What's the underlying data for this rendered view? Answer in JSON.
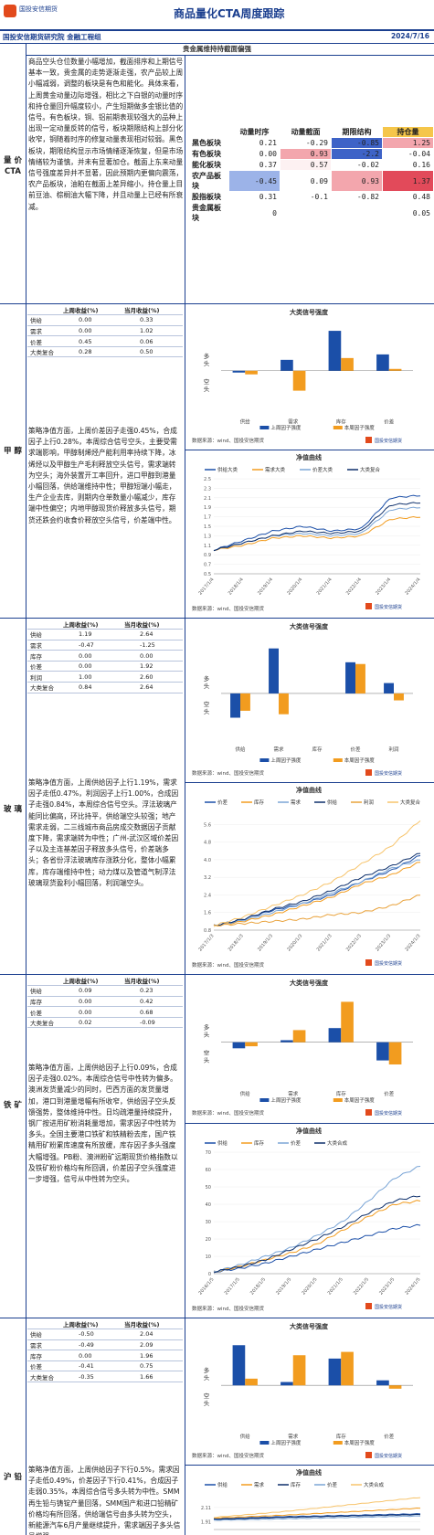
{
  "header": {
    "logo_text": "国投安信期货",
    "title": "商品量化CTA周度跟踪",
    "department": "国投安信期货研究院 金融工程组",
    "date": "2024/7/16"
  },
  "sections": [
    {
      "label": "量\n价\nCTA",
      "title": "贵金属维持持截面偏强",
      "paragraph": "商品空头仓位数量小幅增加，截面排序和上期信号基本一致，贵金属的走势逐渐走强，农产品较上周小幅减弱，调整的板块是有色和能化。具体来看，上周黄金动量边际增强，相比之下白银的动量时序和持仓量回升幅度较小，产生短期做多金银比值的信号。有色板块，铜、铝前期表现较强大的品种上出现一定动量反转的信号，板块期限结构上部分化收窄，铜随着时序的修复动量表现相对较弱。黑色板块，期限结构显示市场情绪逐渐恢复，但是市场情绪较为谨慎，并未有显著加仓。截面上东来动量信号强度差异并不显著，因此预期内更偏向震荡，农产品板块，油粕在截面上差异缩小，持仓量上目前豆油、棕榈油大幅下降，并且动量上已经有所衰减。"
    },
    {
      "label": "甲\n醇",
      "paragraph": "策略净值方面，上周价差因子走强0.45%，合成因子上行0.28%，本周综合信号空头，主要受需求端影响，甲醇制烯烃产能利用率持续下降，冰烯烃以及甲醇生产毛利释放空头信号，需求端转为空头；海外装置开工率回升，进口甲醇到港量小幅回落，供给端维持中性；甲醇短端小幅走，生产企业去库，则期内仓单数量小幅减少，库存端中性偏空；内地甲醇现货价释放多头信号，期货还跌会约收食价释放空头信号，价差端中性。"
    },
    {
      "label": "玻\n璃",
      "paragraph": "策略净值方面，上周供给因子上行1.19%，需求因子走低0.47%，利润因子上行1.00%，合成因子走强0.84%，本周综合信号空头。浮法玻璃产能同比偏高，环比持平，供给端空头较强；地产需求走弱，二三线城市商品房成交数据因子贡献度下降，需求端转为中性；广州-武汉区域价差因子以及主连基差因子释放多头信号，价差端多头；各省份浮法玻璃库存涨跌分化，整体小幅累库，库存端维持中性；动力煤以及管道气制浮法玻璃现货盈利小幅回落，利润端空头。"
    },
    {
      "label": "铁\n矿",
      "paragraph": "策略净值方面，上周供给因子上行0.09%，合成因子走强0.02%，本周综合信号中性转为偏多。澳洲发货量减少的同时，巴西方面的发货量增加，港口到港量增幅有所收窄，供给因子空头反馈强势，整体维持中性。日均疏港量持续提升，钢厂按进用矿粉消耗量增加，需求因子中性转为多头。全国主要港口铁矿和铁精粉去库，国产铁精用矿粉累库速度有所放缓，库存因子多头强度大幅增强。PB粉、澳洲粉矿远期现货价格指数以及铁矿粉价格均有所回调，价差因子空头强度进一步增强，信号从中性转为空头。"
    },
    {
      "label": "沪\n铅",
      "paragraph": "策略净值方面，上周供给因子下行0.5%，需求因子走低0.49%，价差因子下行0.41%，合成因子走弱0.35%，本周综合信号多头转为中性。SMM再生铅与铸锭产量回落，SMM国产和进口铅精矿价格均有所回落，供给端信号由多头转为空头，新能源汽车6月产量继续提升，需求端因子多头信号增强，"
    }
  ],
  "heatmap": {
    "columns": [
      "动量时序",
      "动量截面",
      "期限结构",
      "持仓量"
    ],
    "rows": [
      {
        "name": "黑色板块",
        "values": [
          "0.21",
          "-0.29",
          "-0.85",
          "1.25"
        ],
        "colors": [
          "#fff",
          "#fff",
          "#3e63c7",
          "#f3a6ad"
        ]
      },
      {
        "name": "有色板块",
        "values": [
          "0.00",
          "0.93",
          "-2.2",
          "-0.04"
        ],
        "colors": [
          "#fff",
          "#f3a6ad",
          "#3e63c7",
          "#fff"
        ]
      },
      {
        "name": "能化板块",
        "values": [
          "0.37",
          "0.57",
          "-0.02",
          "0.16"
        ],
        "colors": [
          "#fff",
          "#fdf1f2",
          "#fff",
          "#fff"
        ]
      },
      {
        "name": "农产品板块",
        "values": [
          "-0.45",
          "0.09",
          "0.93",
          "1.37"
        ],
        "colors": [
          "#9cb3e8",
          "#fff",
          "#f3a6ad",
          "#e24a5a"
        ]
      },
      {
        "name": "股指板块",
        "values": [
          "0.31",
          "-0.1",
          "-0.82",
          "0.48"
        ],
        "colors": [
          "#fff",
          "#fff",
          "#fff",
          "#fff"
        ]
      },
      {
        "name": "贵金属板块",
        "values": [
          "0",
          "",
          "",
          "0.05"
        ],
        "colors": [
          "#fff",
          "#fff",
          "#fff",
          "#fff"
        ]
      }
    ]
  },
  "signal_tables": [
    {
      "headers": [
        "",
        "上周收益(%)",
        "当月收益(%)"
      ],
      "rows": [
        [
          "供给",
          "0.00",
          "0.33"
        ],
        [
          "需求",
          "0.00",
          "1.02"
        ],
        [
          "价差",
          "0.45",
          "0.06"
        ],
        [
          "大类复合",
          "0.28",
          "0.50"
        ]
      ]
    },
    {
      "headers": [
        "",
        "上周收益(%)",
        "当月收益(%)"
      ],
      "rows": [
        [
          "供给",
          "1.19",
          "2.64"
        ],
        [
          "需求",
          "-0.47",
          "-1.25"
        ],
        [
          "库存",
          "0.00",
          "0.00"
        ],
        [
          "价差",
          "0.00",
          "1.92"
        ],
        [
          "利润",
          "1.00",
          "2.60"
        ],
        [
          "大类复合",
          "0.84",
          "2.64"
        ]
      ]
    },
    {
      "headers": [
        "",
        "上周收益(%)",
        "当月收益(%)"
      ],
      "rows": [
        [
          "供给",
          "0.09",
          "0.23"
        ],
        [
          "库存",
          "0.00",
          "0.42"
        ],
        [
          "价差",
          "0.00",
          "0.68"
        ],
        [
          "大类复合",
          "0.02",
          "-0.09"
        ]
      ]
    },
    {
      "headers": [
        "",
        "上周收益(%)",
        "当月收益(%)"
      ],
      "rows": [
        [
          "供给",
          "-0.50",
          "2.04"
        ],
        [
          "需求",
          "-0.49",
          "2.09"
        ],
        [
          "库存",
          "0.00",
          "1.96"
        ],
        [
          "价差",
          "-0.41",
          "0.75"
        ],
        [
          "大类复合",
          "-0.35",
          "1.66"
        ]
      ]
    }
  ],
  "chart_common": {
    "strength_title": "大类信号强度",
    "nav_title": "净值曲线",
    "long_label": "多\n头",
    "short_label": "空\n头",
    "legend_last": "上周因子强度",
    "legend_this": "本周因子强度",
    "source": "数据来源：wind、国投安信期货",
    "logo_text": "国投安信期货"
  },
  "chart_data": [
    {
      "type": "bar",
      "categories": [
        "供给",
        "需求",
        "库存",
        "价差"
      ],
      "series": [
        {
          "name": "上周因子强度",
          "values": [
            -0.05,
            0.3,
            1.1,
            0.45
          ],
          "color": "#1b4fa8"
        },
        {
          "name": "本周因子强度",
          "values": [
            -0.1,
            -0.55,
            0.35,
            0.05
          ],
          "color": "#f29c1f"
        }
      ]
    },
    {
      "type": "line",
      "title": "净值曲线",
      "x": [
        "2017/1/4",
        "2018/1/4",
        "2019/1/4",
        "2020/1/4",
        "2021/1/4",
        "2022/1/4",
        "2023/1/4",
        "2024/1/4"
      ],
      "ylim": [
        0.5,
        2.5
      ],
      "yticks": [
        "0.5",
        "0.7",
        "0.9",
        "1.1",
        "1.3",
        "1.5",
        "1.7",
        "1.9",
        "2.1",
        "2.3",
        "2.5"
      ],
      "series": [
        {
          "name": "供给大类",
          "color": "#1b4fa8",
          "values": [
            1.0,
            1.2,
            1.4,
            1.5,
            1.4,
            1.45,
            2.1,
            2.15
          ]
        },
        {
          "name": "需求大类",
          "color": "#f29c1f",
          "values": [
            1.0,
            1.1,
            1.25,
            1.3,
            1.25,
            1.3,
            1.65,
            1.7
          ]
        },
        {
          "name": "价差大类",
          "color": "#7aa5d6",
          "values": [
            1.0,
            1.15,
            1.3,
            1.35,
            1.3,
            1.35,
            1.85,
            1.9
          ]
        },
        {
          "name": "大类复合",
          "color": "#0d2f6b",
          "values": [
            1.0,
            1.15,
            1.3,
            1.4,
            1.35,
            1.4,
            1.95,
            2.0
          ]
        }
      ]
    },
    {
      "type": "bar",
      "categories": [
        "供给",
        "需求",
        "库存",
        "价差",
        "利润"
      ],
      "series": [
        {
          "name": "上周因子强度",
          "values": [
            -0.7,
            1.3,
            0,
            0.9,
            0.3
          ],
          "color": "#1b4fa8"
        },
        {
          "name": "本周因子强度",
          "values": [
            -0.5,
            -0.6,
            0,
            0.85,
            -0.2
          ],
          "color": "#f29c1f"
        }
      ]
    },
    {
      "type": "line",
      "title": "净值曲线",
      "x": [
        "2017/1/3",
        "2018/1/3",
        "2019/1/3",
        "2020/1/3",
        "2021/1/3",
        "2022/1/3",
        "2023/1/3",
        "2024/1/3"
      ],
      "ylim": [
        0.8,
        6.2
      ],
      "yticks": [
        "0.8",
        "1.6",
        "2.4",
        "3.2",
        "4.0",
        "4.8",
        "5.6"
      ],
      "series": [
        {
          "name": "价差",
          "color": "#1b4fa8",
          "values": [
            1.0,
            1.3,
            1.7,
            2.0,
            2.4,
            3.0,
            3.5,
            4.2
          ]
        },
        {
          "name": "库存",
          "color": "#f29c1f",
          "values": [
            1.0,
            1.2,
            1.5,
            1.9,
            2.3,
            2.9,
            3.3,
            3.9
          ]
        },
        {
          "name": "需求",
          "color": "#7aa5d6",
          "values": [
            1.0,
            1.25,
            1.6,
            2.0,
            2.5,
            3.0,
            3.6,
            4.0
          ]
        },
        {
          "name": "供给",
          "color": "#0d2f6b",
          "values": [
            1.0,
            1.3,
            1.75,
            2.1,
            2.6,
            3.2,
            3.7,
            4.3
          ]
        },
        {
          "name": "利润",
          "color": "#e9a23b",
          "values": [
            1.0,
            1.1,
            1.2,
            1.3,
            1.5,
            1.6,
            1.9,
            2.4
          ]
        },
        {
          "name": "大类复合",
          "color": "#f7c46c",
          "values": [
            1.0,
            1.4,
            1.9,
            2.4,
            3.0,
            3.8,
            4.6,
            5.8
          ]
        }
      ]
    },
    {
      "type": "bar",
      "categories": [
        "供给",
        "需求",
        "库存",
        "价差"
      ],
      "series": [
        {
          "name": "上周因子强度",
          "values": [
            -0.15,
            0.05,
            0.35,
            -0.45
          ],
          "color": "#1b4fa8"
        },
        {
          "name": "本周因子强度",
          "values": [
            -0.1,
            0.3,
            1.0,
            -0.55
          ],
          "color": "#f29c1f"
        }
      ]
    },
    {
      "type": "line",
      "title": "净值曲线",
      "x": [
        "2016/1/5",
        "2017/1/5",
        "2018/1/5",
        "2019/1/5",
        "2020/1/5",
        "2021/1/5",
        "2022/1/5",
        "2023/1/5",
        "2024/1/5"
      ],
      "ylim": [
        0,
        70
      ],
      "yticks": [
        "0",
        "10",
        "20",
        "30",
        "40",
        "50",
        "60",
        "70"
      ],
      "series": [
        {
          "name": "供给",
          "color": "#1b4fa8",
          "values": [
            1,
            3,
            6,
            10,
            14,
            18,
            22,
            26,
            28
          ]
        },
        {
          "name": "库存",
          "color": "#f29c1f",
          "values": [
            1,
            4,
            8,
            12,
            17,
            25,
            33,
            40,
            42
          ]
        },
        {
          "name": "价差",
          "color": "#7aa5d6",
          "values": [
            1,
            5,
            10,
            15,
            22,
            30,
            42,
            55,
            62
          ]
        },
        {
          "name": "大类合成",
          "color": "#0d2f6b",
          "values": [
            1,
            4,
            8,
            14,
            20,
            27,
            35,
            42,
            45
          ]
        }
      ]
    },
    {
      "type": "bar",
      "categories": [
        "供给",
        "需求",
        "库存",
        "价差"
      ],
      "series": [
        {
          "name": "上周因子强度",
          "values": [
            1.2,
            0.1,
            0.8,
            0.15
          ],
          "color": "#1b4fa8"
        },
        {
          "name": "本周因子强度",
          "values": [
            0.2,
            0.9,
            1.0,
            -0.1
          ],
          "color": "#f29c1f"
        }
      ]
    },
    {
      "type": "line",
      "title": "净值曲线",
      "ylim": [
        1.8,
        2.3
      ],
      "yticks": [
        "1.91",
        "2.11"
      ],
      "series": [
        {
          "name": "供给",
          "color": "#1b4fa8",
          "values": [
            1.95,
            1.98,
            2.0,
            2.02
          ]
        },
        {
          "name": "需求",
          "color": "#f29c1f",
          "values": [
            1.96,
            2.0,
            2.05,
            2.1
          ]
        },
        {
          "name": "库存",
          "color": "#0d2f6b",
          "values": [
            1.94,
            1.97,
            1.99,
            2.01
          ]
        },
        {
          "name": "价差",
          "color": "#7aa5d6",
          "values": [
            1.93,
            1.95,
            1.97,
            1.99
          ]
        },
        {
          "name": "大类合成",
          "color": "#f7c46c",
          "values": [
            1.97,
            2.05,
            2.15,
            2.25
          ]
        }
      ]
    }
  ]
}
